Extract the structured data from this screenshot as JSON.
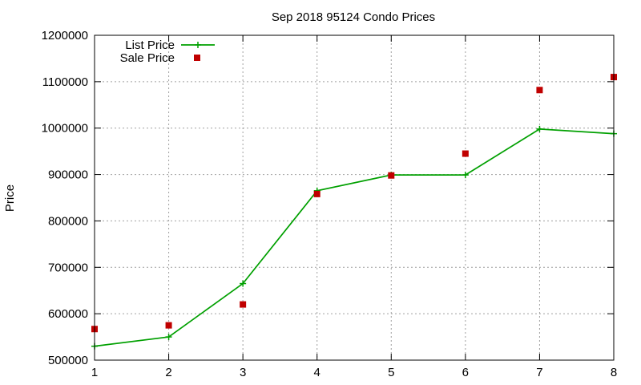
{
  "chart_data": {
    "type": "line",
    "title": "Sep 2018 95124 Condo Prices",
    "xlabel": "",
    "ylabel": "Price",
    "x": [
      1,
      2,
      3,
      4,
      5,
      6,
      7,
      8
    ],
    "xlim": [
      1,
      8
    ],
    "ylim": [
      500000,
      1200000
    ],
    "xticks": [
      "1",
      "2",
      "3",
      "4",
      "5",
      "6",
      "7",
      "8"
    ],
    "yticks": [
      "500000",
      "600000",
      "700000",
      "800000",
      "900000",
      "1000000",
      "1100000",
      "1200000"
    ],
    "grid": true,
    "legend_position": "top-left",
    "series": [
      {
        "name": "List Price",
        "kind": "line",
        "marker": "plus",
        "color": "#00a000",
        "values": [
          530000,
          550000,
          665000,
          865000,
          899000,
          899000,
          998000,
          988000
        ]
      },
      {
        "name": "Sale Price",
        "kind": "points",
        "marker": "square",
        "color": "#c00000",
        "values": [
          567000,
          575000,
          620000,
          858000,
          898000,
          945000,
          1082000,
          1110000
        ]
      }
    ]
  }
}
